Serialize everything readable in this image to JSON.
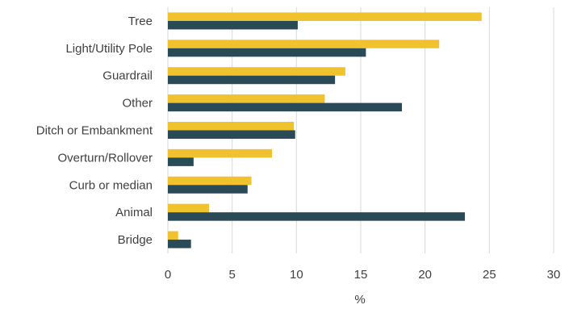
{
  "chart_data": {
    "type": "bar",
    "orientation": "horizontal",
    "categories": [
      "Tree",
      "Light/Utility Pole",
      "Guardrail",
      "Other",
      "Ditch or Embankment",
      "Overturn/Rollover",
      "Curb or median",
      "Animal",
      "Bridge"
    ],
    "series": [
      {
        "color": "#EFC22E",
        "values": [
          24.4,
          21.1,
          13.8,
          12.2,
          9.8,
          8.1,
          6.5,
          3.2,
          0.8
        ]
      },
      {
        "color": "#2B4A58",
        "values": [
          10.1,
          15.4,
          13.0,
          18.2,
          9.9,
          2.0,
          6.2,
          23.1,
          1.8
        ]
      }
    ],
    "xlabel": "%",
    "ylabel": "",
    "title": "",
    "xlim": [
      0,
      30
    ],
    "xticks": [
      "0",
      "5",
      "10",
      "15",
      "20",
      "25",
      "30"
    ],
    "grid": "vertical",
    "legend": "none",
    "gridline_color": "#D9D9D9"
  }
}
